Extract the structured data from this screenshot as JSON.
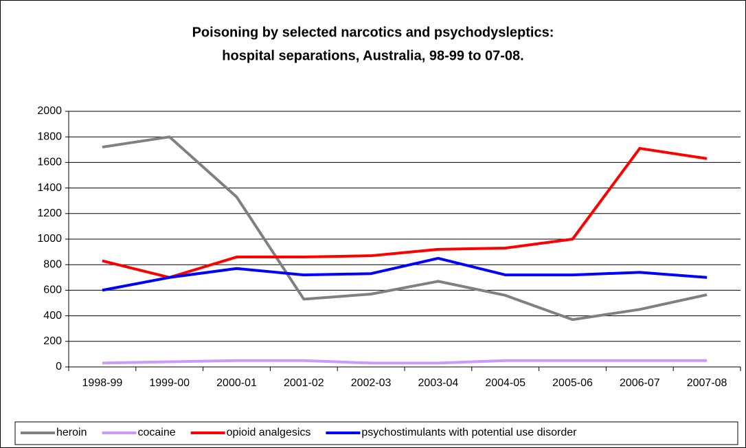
{
  "chart_data": {
    "type": "line",
    "title": [
      "Poisoning by selected narcotics and psychodysleptics:",
      "hospital separations, Australia, 98-99 to 07-08."
    ],
    "categories": [
      "1998-99",
      "1999-00",
      "2000-01",
      "2001-02",
      "2002-03",
      "2003-04",
      "2004-05",
      "2005-06",
      "2006-07",
      "2007-08"
    ],
    "series": [
      {
        "name": "heroin",
        "color": "#808080",
        "values": [
          1720,
          1800,
          1330,
          530,
          570,
          670,
          560,
          370,
          450,
          565
        ]
      },
      {
        "name": "cocaine",
        "color": "#cc99ff",
        "values": [
          30,
          40,
          50,
          50,
          30,
          30,
          50,
          50,
          50,
          50
        ]
      },
      {
        "name": "opioid analgesics",
        "color": "#ff0000",
        "values": [
          830,
          700,
          860,
          860,
          870,
          920,
          930,
          1000,
          1710,
          1630
        ]
      },
      {
        "name": "psychostimulants with potential use disorder",
        "color": "#0000ff",
        "values": [
          600,
          700,
          770,
          720,
          730,
          850,
          720,
          720,
          740,
          700
        ]
      }
    ],
    "ylim": [
      0,
      2000
    ],
    "yticks": [
      0,
      200,
      400,
      600,
      800,
      1000,
      1200,
      1400,
      1600,
      1800,
      2000
    ],
    "grid": true,
    "legend": "bottom"
  }
}
